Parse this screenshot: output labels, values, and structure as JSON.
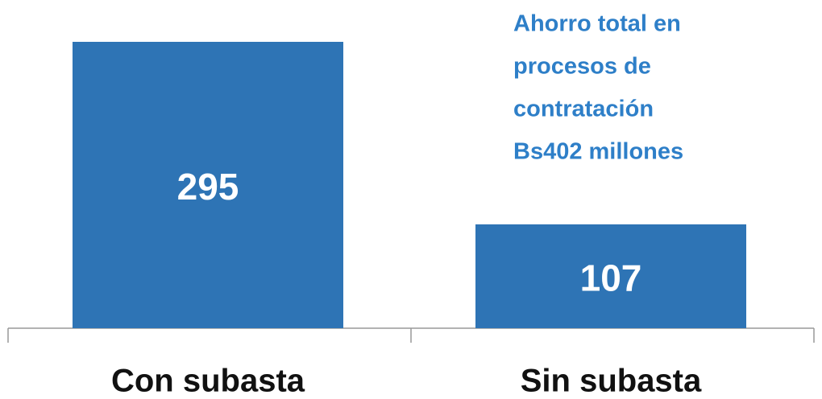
{
  "chart_data": {
    "type": "bar",
    "categories": [
      "Con subasta",
      "Sin subasta"
    ],
    "values": [
      295,
      107
    ],
    "color": "#2e74b5",
    "annotation": [
      "Ahorro total en",
      "procesos de",
      "contratación",
      "Bs402 millones"
    ],
    "annotation_color": "#2e7fc8"
  }
}
